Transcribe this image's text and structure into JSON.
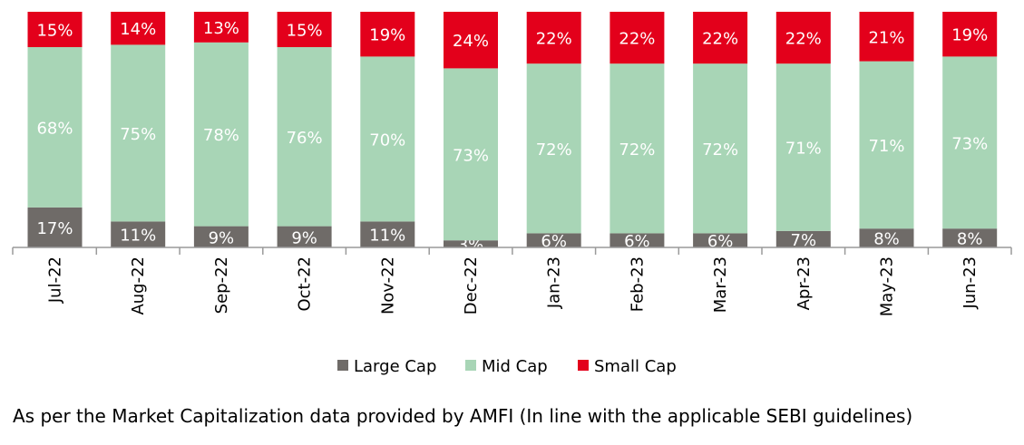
{
  "chart_data": {
    "type": "bar",
    "stacked": true,
    "categories": [
      "Jul-22",
      "Aug-22",
      "Sep-22",
      "Oct-22",
      "Nov-22",
      "Dec-22",
      "Jan-23",
      "Feb-23",
      "Mar-23",
      "Apr-23",
      "May-23",
      "Jun-23"
    ],
    "series": [
      {
        "name": "Large Cap",
        "color": "#6f6b68",
        "values": [
          17,
          11,
          9,
          9,
          11,
          3,
          6,
          6,
          6,
          7,
          8,
          8
        ],
        "labels": [
          "17%",
          "11%",
          "9%",
          "9%",
          "11%",
          "3%",
          "6%",
          "6%",
          "6%",
          "7%",
          "8%",
          "8%"
        ]
      },
      {
        "name": "Mid Cap",
        "color": "#a8d5b6",
        "values": [
          68,
          75,
          78,
          76,
          70,
          73,
          72,
          72,
          72,
          71,
          71,
          73
        ],
        "labels": [
          "68%",
          "75%",
          "78%",
          "76%",
          "70%",
          "73%",
          "72%",
          "72%",
          "72%",
          "71%",
          "71%",
          "73%"
        ]
      },
      {
        "name": "Small Cap",
        "color": "#e3001b",
        "values": [
          15,
          14,
          13,
          15,
          19,
          24,
          22,
          22,
          22,
          22,
          21,
          19
        ],
        "labels": [
          "15%",
          "14%",
          "13%",
          "15%",
          "19%",
          "24%",
          "22%",
          "22%",
          "22%",
          "22%",
          "21%",
          "19%"
        ]
      }
    ],
    "legend_position": "bottom"
  },
  "footnote": "As per the Market Capitalization data provided by AMFI (In line with the applicable SEBI guidelines)"
}
